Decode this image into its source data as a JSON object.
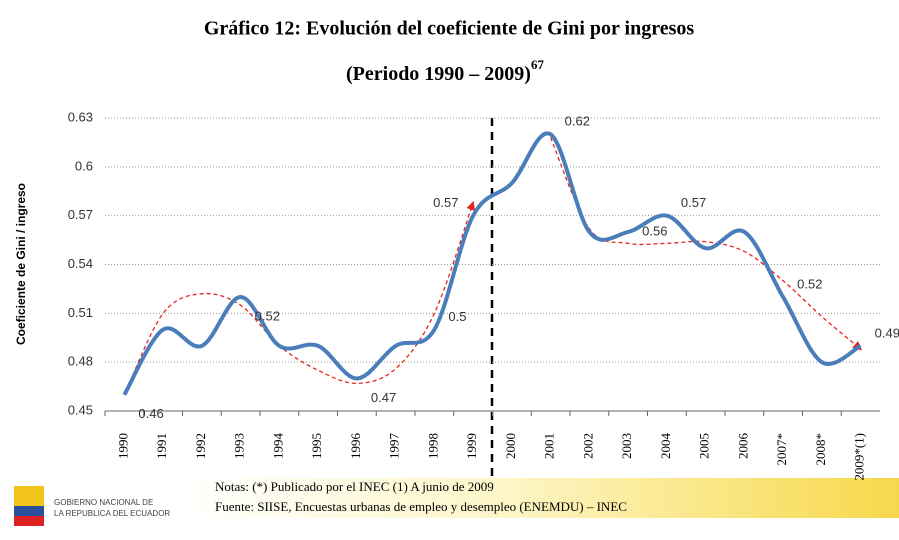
{
  "chart_data": {
    "type": "line",
    "title": "Gráfico 12: Evolución del coeficiente de Gini por ingresos",
    "subtitle": "(Periodo 1990 – 2009)",
    "subtitle_sup": "67",
    "y_label": "Coeficiente de Gini / ingreso",
    "categories": [
      "1990",
      "1991",
      "1992",
      "1993",
      "1994",
      "1995",
      "1996",
      "1997",
      "1998",
      "1999",
      "2000",
      "2001",
      "2002",
      "2003",
      "2004",
      "2005",
      "2006",
      "2007*",
      "2008*",
      "2009*(1)"
    ],
    "series": [
      {
        "color": "#4a7ebb",
        "values": [
          0.46,
          0.5,
          0.49,
          0.52,
          0.49,
          0.49,
          0.47,
          0.49,
          0.5,
          0.57,
          0.59,
          0.62,
          0.56,
          0.56,
          0.57,
          0.55,
          0.56,
          0.52,
          0.48,
          0.49
        ],
        "value_labels": [
          "0.46",
          null,
          null,
          "0.52",
          null,
          null,
          "0.47",
          null,
          "0.5",
          "0.57",
          null,
          "0.62",
          null,
          "0.56",
          "0.57",
          null,
          null,
          "0.52",
          null,
          "0.49"
        ]
      },
      {
        "color": "#e8231e",
        "dashed": true,
        "values": [
          0.46,
          0.51,
          0.522,
          0.515,
          0.49,
          0.475,
          0.467,
          0.476,
          0.51,
          0.578,
          null,
          0.618,
          0.562,
          0.553,
          0.553,
          0.554,
          0.548,
          0.53,
          0.508,
          0.488
        ]
      }
    ],
    "ylim": [
      0.45,
      0.63
    ],
    "yticks": [
      0.45,
      0.48,
      0.51,
      0.54,
      0.57,
      0.6,
      0.63
    ],
    "grid": true,
    "notes": "Notas: (*) Publicado por el INEC (1) A junio de 2009",
    "source": "Fuente: SIISE, Encuestas urbanas de empleo y desempleo (ENEMDU) – INEC",
    "logo_text": [
      "GOBIERNO NACIONAL DE",
      "LA REPUBLICA DEL ECUADOR"
    ]
  }
}
